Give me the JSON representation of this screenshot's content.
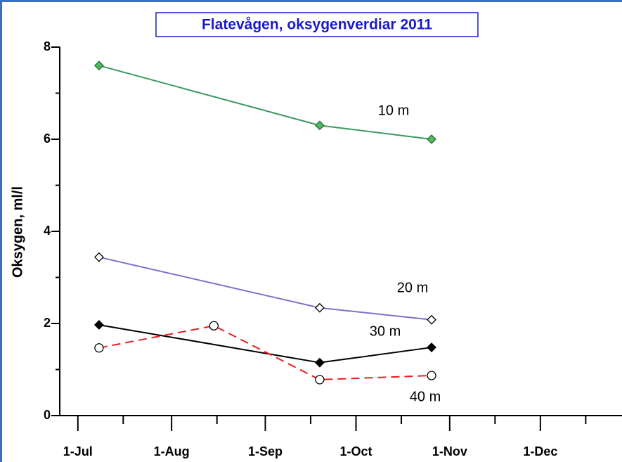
{
  "chart_data": {
    "type": "line",
    "title": "Flatevågen, oksygenverdiar 2011",
    "y_label": "Oksygen, ml/l",
    "xlim": [
      "2011-06-25",
      "2011-12-28"
    ],
    "xticks": [
      {
        "value": "2011-07-01",
        "label": "1-Jul"
      },
      {
        "value": "2011-08-01",
        "label": "1-Aug"
      },
      {
        "value": "2011-09-01",
        "label": "1-Sep"
      },
      {
        "value": "2011-10-01",
        "label": "1-Oct"
      },
      {
        "value": "2011-11-01",
        "label": "1-Nov"
      },
      {
        "value": "2011-12-01",
        "label": "1-Dec"
      }
    ],
    "xminorticks": [
      "2011-07-16",
      "2011-08-16",
      "2011-09-16",
      "2011-10-16",
      "2011-11-16",
      "2011-12-16"
    ],
    "ylim": [
      0,
      8
    ],
    "yticks": [
      0,
      2,
      4,
      6,
      8
    ],
    "yminorticks": [
      1,
      3,
      5,
      7
    ],
    "series": [
      {
        "name": "10 m",
        "color": "#3a9a60",
        "marker": "diamond",
        "marker_fill": "#4cbb5a",
        "dash": false,
        "x": [
          "2011-07-08",
          "2011-09-19",
          "2011-10-26"
        ],
        "values": [
          7.6,
          6.3,
          6.0
        ]
      },
      {
        "name": "20 m",
        "color": "#7b72cc",
        "marker": "diamond",
        "marker_fill": "#ffffff",
        "dash": false,
        "x": [
          "2011-07-08",
          "2011-09-19",
          "2011-10-26"
        ],
        "values": [
          3.44,
          2.34,
          2.08
        ]
      },
      {
        "name": "30 m",
        "color": "#000000",
        "marker": "diamond",
        "marker_fill": "#000000",
        "dash": false,
        "x": [
          "2011-07-08",
          "2011-09-19",
          "2011-10-26"
        ],
        "values": [
          1.97,
          1.15,
          1.48
        ]
      },
      {
        "name": "40 m",
        "color": "#ee1c1c",
        "marker": "circle",
        "marker_fill": "#ffffff",
        "dash": true,
        "x": [
          "2011-07-08",
          "2011-08-15",
          "2011-09-19",
          "2011-10-26"
        ],
        "values": [
          1.47,
          1.95,
          0.78,
          0.87
        ]
      }
    ]
  }
}
